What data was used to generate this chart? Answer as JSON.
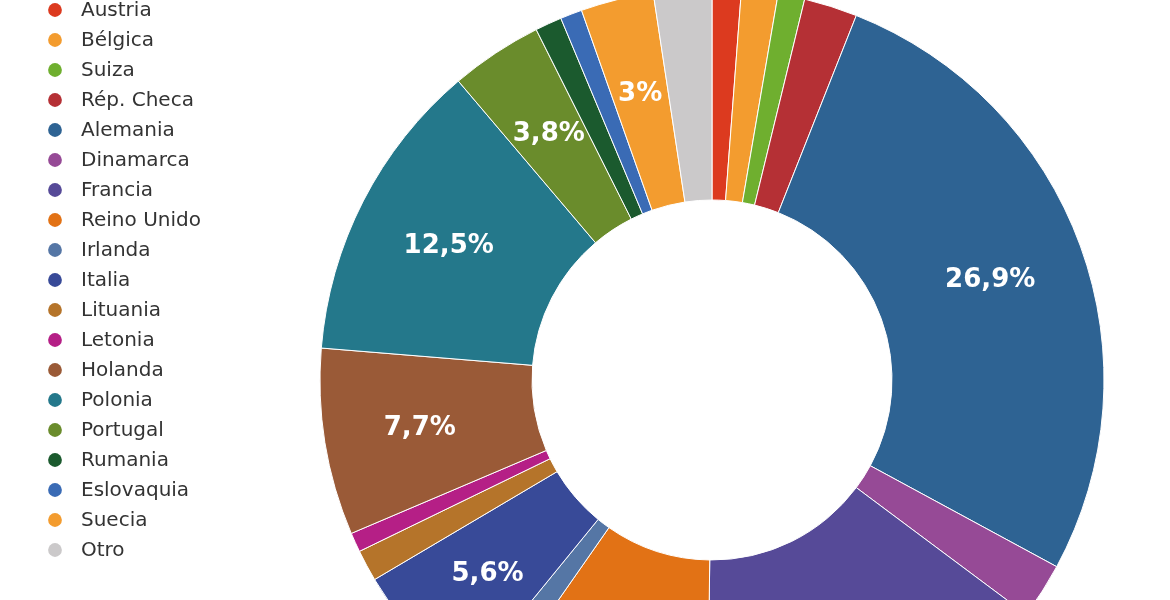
{
  "chart_data": {
    "type": "donut",
    "categories": [
      "Austria",
      "Bélgica",
      "Suiza",
      "Rép. Checa",
      "Alemania",
      "Dinamarca",
      "Francia",
      "Reino Unido",
      "Irlanda",
      "Italia",
      "Lituania",
      "Letonia",
      "Holanda",
      "Polonia",
      "Portugal",
      "Rumania",
      "Eslovaquia",
      "Suecia",
      "Otro"
    ],
    "values": [
      1.2,
      1.5,
      1.1,
      2.2,
      26.9,
      2.3,
      15,
      9.5,
      1.2,
      5.6,
      1.3,
      0.8,
      7.7,
      12.5,
      3.8,
      1.1,
      0.9,
      3,
      2.4
    ],
    "value_labels": [
      null,
      null,
      null,
      null,
      "26,9%",
      null,
      null,
      null,
      null,
      "5,6%",
      null,
      null,
      "7,7%",
      "12,5%",
      "3,8%",
      null,
      null,
      "3%",
      null
    ],
    "colors": [
      "#dc3a1f",
      "#f39c2f",
      "#6faf2f",
      "#b53035",
      "#2e6393",
      "#964a96",
      "#564a98",
      "#e27215",
      "#5576a5",
      "#384a98",
      "#b5742a",
      "#b51f86",
      "#9a5a37",
      "#24788b",
      "#6a8c2c",
      "#1b5a2e",
      "#3a6bb5",
      "#f39c2f",
      "#cbc9ca"
    ],
    "legend": "left"
  }
}
